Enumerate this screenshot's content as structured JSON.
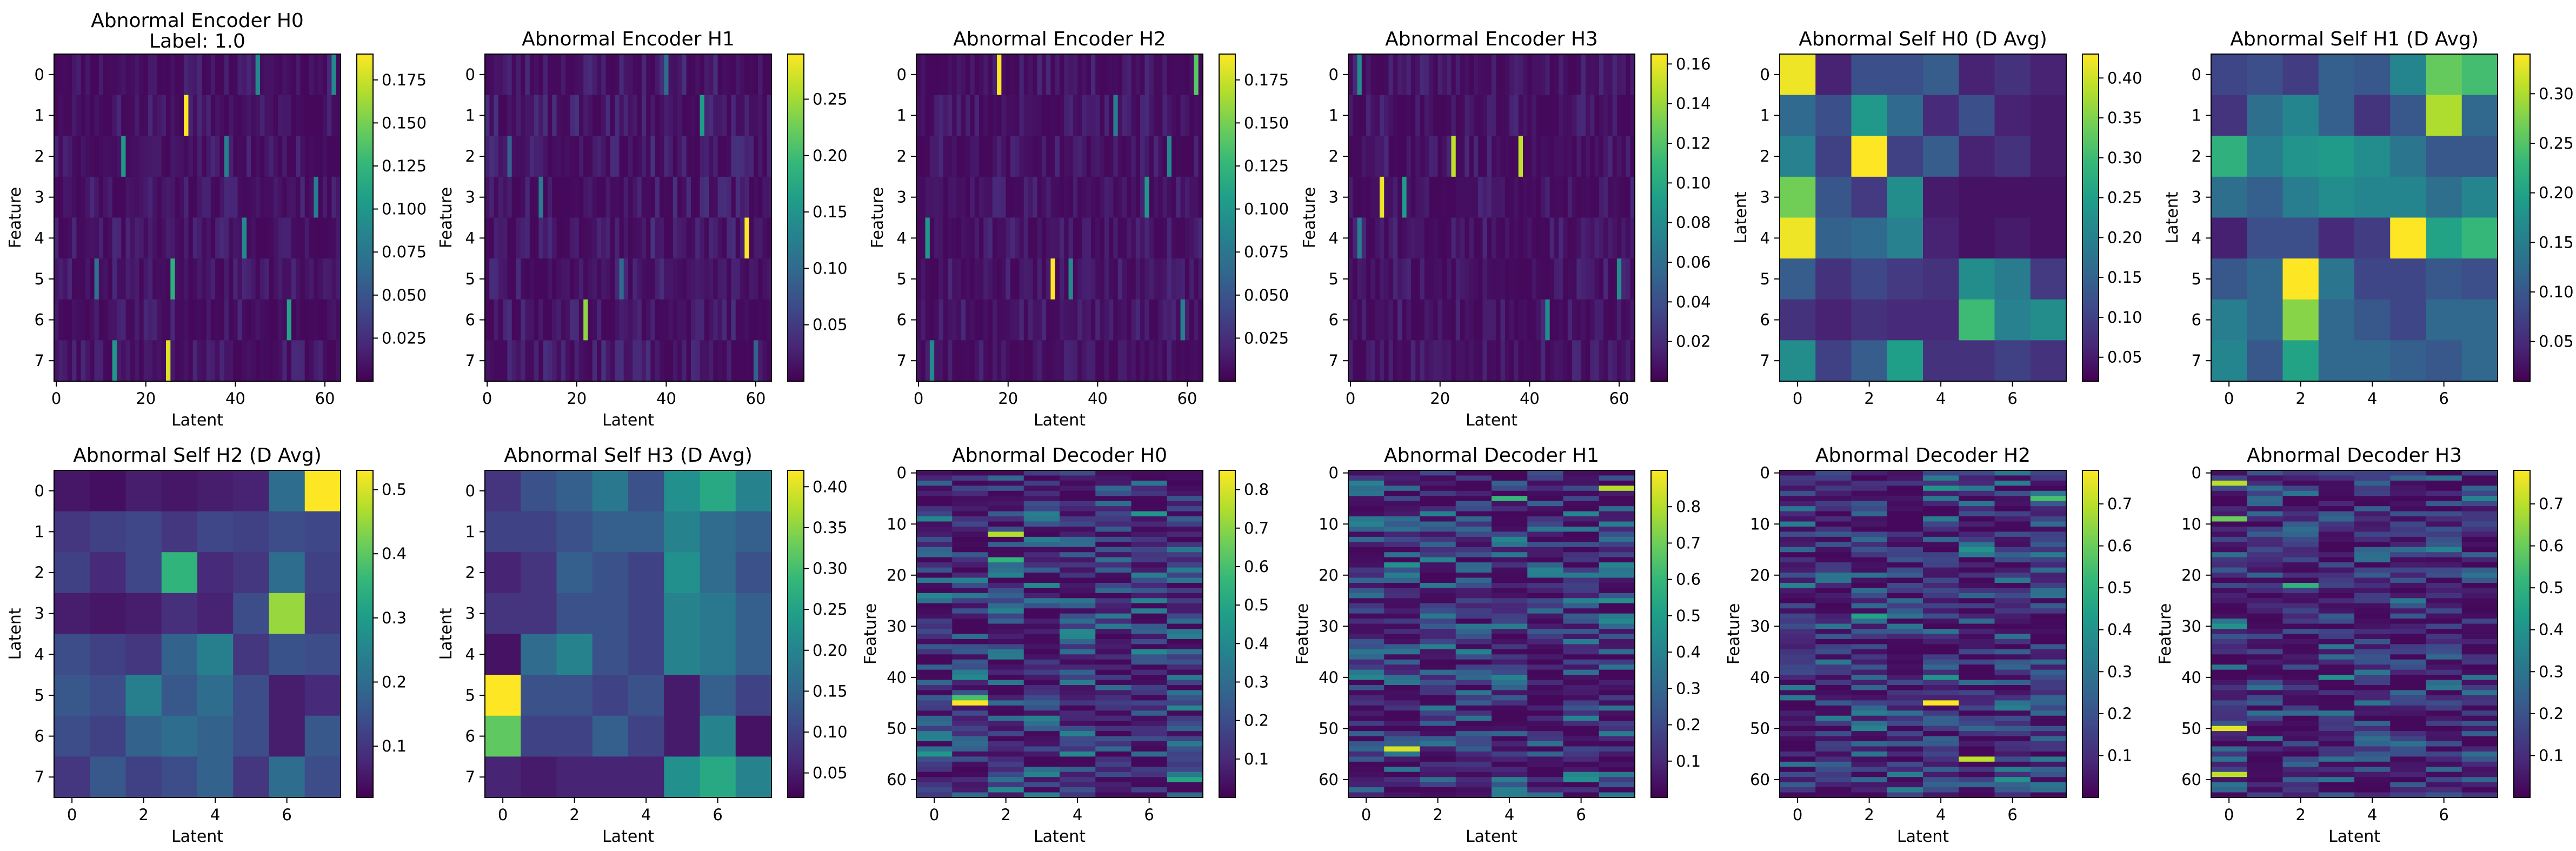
{
  "colormap": [
    "#440154",
    "#482878",
    "#3e4989",
    "#31688e",
    "#26828e",
    "#1f9e89",
    "#35b779",
    "#6ece58",
    "#b5de2b",
    "#fde725"
  ],
  "chart_data": [
    {
      "type": "heatmap",
      "title": "Abnormal Encoder H0",
      "subtitle": "Label: 1.0",
      "xlabel": "Latent",
      "ylabel": "Feature",
      "rows": 8,
      "cols": 64,
      "xticks": [
        0,
        20,
        40,
        60
      ],
      "yticks": [
        0,
        1,
        2,
        3,
        4,
        5,
        6,
        7
      ],
      "vmin": 0.0,
      "vmax": 0.19,
      "cbar_ticks": [
        "0.025",
        "0.050",
        "0.075",
        "0.100",
        "0.125",
        "0.150",
        "0.175"
      ],
      "cbar_values": [
        0.025,
        0.05,
        0.075,
        0.1,
        0.125,
        0.15,
        0.175
      ],
      "peaks": [
        [
          1,
          29,
          0.19
        ],
        [
          5,
          26,
          0.12
        ],
        [
          6,
          52,
          0.11
        ],
        [
          2,
          15,
          0.1
        ],
        [
          0,
          45,
          0.09
        ],
        [
          4,
          42,
          0.09
        ],
        [
          2,
          38,
          0.08
        ],
        [
          3,
          58,
          0.08
        ],
        [
          7,
          25,
          0.18
        ],
        [
          7,
          13,
          0.1
        ],
        [
          0,
          62,
          0.09
        ],
        [
          5,
          9,
          0.07
        ]
      ],
      "seed": 11,
      "base": 0.03
    },
    {
      "type": "heatmap",
      "title": "Abnormal Encoder H1",
      "xlabel": "Latent",
      "ylabel": "Feature",
      "rows": 8,
      "cols": 64,
      "xticks": [
        0,
        20,
        40,
        60
      ],
      "yticks": [
        0,
        1,
        2,
        3,
        4,
        5,
        6,
        7
      ],
      "vmin": 0.0,
      "vmax": 0.29,
      "cbar_ticks": [
        "0.05",
        "0.10",
        "0.15",
        "0.20",
        "0.25"
      ],
      "cbar_values": [
        0.05,
        0.1,
        0.15,
        0.2,
        0.25
      ],
      "peaks": [
        [
          4,
          58,
          0.29
        ],
        [
          6,
          22,
          0.24
        ],
        [
          1,
          48,
          0.16
        ],
        [
          3,
          12,
          0.12
        ],
        [
          5,
          30,
          0.1
        ],
        [
          0,
          40,
          0.1
        ],
        [
          2,
          5,
          0.09
        ],
        [
          7,
          60,
          0.09
        ]
      ],
      "seed": 23,
      "base": 0.04
    },
    {
      "type": "heatmap",
      "title": "Abnormal Encoder H2",
      "xlabel": "Latent",
      "ylabel": "Feature",
      "rows": 8,
      "cols": 64,
      "xticks": [
        0,
        20,
        40,
        60
      ],
      "yticks": [
        0,
        1,
        2,
        3,
        4,
        5,
        6,
        7
      ],
      "vmin": 0.0,
      "vmax": 0.19,
      "cbar_ticks": [
        "0.025",
        "0.050",
        "0.075",
        "0.100",
        "0.125",
        "0.150",
        "0.175"
      ],
      "cbar_values": [
        0.025,
        0.05,
        0.075,
        0.1,
        0.125,
        0.15,
        0.175
      ],
      "peaks": [
        [
          0,
          18,
          0.19
        ],
        [
          5,
          30,
          0.19
        ],
        [
          0,
          62,
          0.14
        ],
        [
          3,
          51,
          0.1
        ],
        [
          4,
          2,
          0.1
        ],
        [
          1,
          44,
          0.08
        ],
        [
          5,
          34,
          0.09
        ],
        [
          6,
          59,
          0.08
        ],
        [
          7,
          3,
          0.09
        ],
        [
          2,
          56,
          0.09
        ]
      ],
      "seed": 37,
      "base": 0.03
    },
    {
      "type": "heatmap",
      "title": "Abnormal Encoder H3",
      "xlabel": "Latent",
      "ylabel": "Feature",
      "rows": 8,
      "cols": 64,
      "xticks": [
        0,
        20,
        40,
        60
      ],
      "yticks": [
        0,
        1,
        2,
        3,
        4,
        5,
        6,
        7
      ],
      "vmin": 0.0,
      "vmax": 0.165,
      "cbar_ticks": [
        "0.02",
        "0.04",
        "0.06",
        "0.08",
        "0.10",
        "0.12",
        "0.14",
        "0.16"
      ],
      "cbar_values": [
        0.02,
        0.04,
        0.06,
        0.08,
        0.1,
        0.12,
        0.14,
        0.16
      ],
      "peaks": [
        [
          3,
          7,
          0.16
        ],
        [
          2,
          23,
          0.15
        ],
        [
          2,
          38,
          0.15
        ],
        [
          0,
          2,
          0.08
        ],
        [
          3,
          12,
          0.09
        ],
        [
          5,
          60,
          0.08
        ],
        [
          6,
          44,
          0.08
        ],
        [
          4,
          2,
          0.07
        ]
      ],
      "seed": 41,
      "base": 0.03
    },
    {
      "type": "heatmap",
      "title": "Abnormal Self H0 (D Avg)",
      "xlabel": "",
      "ylabel": "Latent",
      "rows": 8,
      "cols": 8,
      "xticks": [
        0,
        2,
        4,
        6
      ],
      "yticks": [
        0,
        1,
        2,
        3,
        4,
        5,
        6,
        7
      ],
      "vmin": 0.02,
      "vmax": 0.43,
      "cbar_ticks": [
        "0.05",
        "0.10",
        "0.15",
        "0.20",
        "0.25",
        "0.30",
        "0.35",
        "0.40"
      ],
      "cbar_values": [
        0.05,
        0.1,
        0.15,
        0.2,
        0.25,
        0.3,
        0.35,
        0.4
      ],
      "values": [
        [
          0.42,
          0.06,
          0.12,
          0.12,
          0.14,
          0.06,
          0.08,
          0.06
        ],
        [
          0.16,
          0.12,
          0.24,
          0.16,
          0.07,
          0.12,
          0.06,
          0.05
        ],
        [
          0.2,
          0.1,
          0.43,
          0.1,
          0.14,
          0.06,
          0.08,
          0.05
        ],
        [
          0.34,
          0.13,
          0.09,
          0.22,
          0.05,
          0.04,
          0.04,
          0.04
        ],
        [
          0.42,
          0.15,
          0.16,
          0.2,
          0.06,
          0.04,
          0.05,
          0.04
        ],
        [
          0.14,
          0.08,
          0.11,
          0.09,
          0.08,
          0.22,
          0.19,
          0.09
        ],
        [
          0.08,
          0.06,
          0.08,
          0.07,
          0.07,
          0.3,
          0.2,
          0.22
        ],
        [
          0.22,
          0.1,
          0.14,
          0.25,
          0.08,
          0.08,
          0.1,
          0.08
        ]
      ]
    },
    {
      "type": "heatmap",
      "title": "Abnormal Self H1 (D Avg)",
      "xlabel": "",
      "ylabel": "Latent",
      "rows": 8,
      "cols": 8,
      "xticks": [
        0,
        2,
        4,
        6
      ],
      "yticks": [
        0,
        1,
        2,
        3,
        4,
        5,
        6,
        7
      ],
      "vmin": 0.01,
      "vmax": 0.34,
      "cbar_ticks": [
        "0.05",
        "0.10",
        "0.15",
        "0.20",
        "0.25",
        "0.30"
      ],
      "cbar_values": [
        0.05,
        0.1,
        0.15,
        0.2,
        0.25,
        0.3
      ],
      "values": [
        [
          0.08,
          0.09,
          0.07,
          0.11,
          0.1,
          0.16,
          0.26,
          0.24
        ],
        [
          0.06,
          0.13,
          0.16,
          0.11,
          0.06,
          0.1,
          0.3,
          0.12
        ],
        [
          0.22,
          0.15,
          0.18,
          0.19,
          0.17,
          0.14,
          0.1,
          0.1
        ],
        [
          0.13,
          0.11,
          0.15,
          0.17,
          0.16,
          0.16,
          0.13,
          0.16
        ],
        [
          0.04,
          0.09,
          0.09,
          0.05,
          0.07,
          0.34,
          0.2,
          0.23
        ],
        [
          0.1,
          0.12,
          0.34,
          0.14,
          0.08,
          0.08,
          0.1,
          0.09
        ],
        [
          0.15,
          0.12,
          0.28,
          0.12,
          0.1,
          0.08,
          0.12,
          0.12
        ],
        [
          0.16,
          0.1,
          0.2,
          0.12,
          0.12,
          0.11,
          0.1,
          0.12
        ]
      ]
    },
    {
      "type": "heatmap",
      "title": "Abnormal Self H2 (D Avg)",
      "xlabel": "Latent",
      "ylabel": "Latent",
      "rows": 8,
      "cols": 8,
      "xticks": [
        0,
        2,
        4,
        6
      ],
      "yticks": [
        0,
        1,
        2,
        3,
        4,
        5,
        6,
        7
      ],
      "vmin": 0.02,
      "vmax": 0.53,
      "cbar_ticks": [
        "0.1",
        "0.2",
        "0.3",
        "0.4",
        "0.5"
      ],
      "cbar_values": [
        0.1,
        0.2,
        0.3,
        0.4,
        0.5
      ],
      "values": [
        [
          0.05,
          0.04,
          0.06,
          0.05,
          0.06,
          0.07,
          0.2,
          0.53
        ],
        [
          0.1,
          0.12,
          0.13,
          0.1,
          0.13,
          0.12,
          0.14,
          0.13
        ],
        [
          0.12,
          0.08,
          0.13,
          0.35,
          0.08,
          0.1,
          0.2,
          0.12
        ],
        [
          0.06,
          0.05,
          0.06,
          0.09,
          0.07,
          0.14,
          0.45,
          0.11
        ],
        [
          0.14,
          0.12,
          0.1,
          0.18,
          0.24,
          0.1,
          0.15,
          0.14
        ],
        [
          0.16,
          0.14,
          0.24,
          0.16,
          0.2,
          0.14,
          0.06,
          0.08
        ],
        [
          0.14,
          0.12,
          0.18,
          0.2,
          0.18,
          0.14,
          0.06,
          0.16
        ],
        [
          0.1,
          0.16,
          0.12,
          0.14,
          0.18,
          0.1,
          0.2,
          0.14
        ]
      ]
    },
    {
      "type": "heatmap",
      "title": "Abnormal Self H3 (D Avg)",
      "xlabel": "Latent",
      "ylabel": "Latent",
      "rows": 8,
      "cols": 8,
      "xticks": [
        0,
        2,
        4,
        6
      ],
      "yticks": [
        0,
        1,
        2,
        3,
        4,
        5,
        6,
        7
      ],
      "vmin": 0.02,
      "vmax": 0.42,
      "cbar_ticks": [
        "0.05",
        "0.10",
        "0.15",
        "0.20",
        "0.25",
        "0.30",
        "0.35",
        "0.40"
      ],
      "cbar_values": [
        0.05,
        0.1,
        0.15,
        0.2,
        0.25,
        0.3,
        0.35,
        0.4
      ],
      "values": [
        [
          0.08,
          0.12,
          0.14,
          0.18,
          0.12,
          0.22,
          0.26,
          0.2
        ],
        [
          0.1,
          0.1,
          0.12,
          0.14,
          0.14,
          0.2,
          0.16,
          0.14
        ],
        [
          0.06,
          0.08,
          0.14,
          0.12,
          0.1,
          0.22,
          0.16,
          0.12
        ],
        [
          0.08,
          0.08,
          0.12,
          0.12,
          0.1,
          0.2,
          0.18,
          0.14
        ],
        [
          0.04,
          0.16,
          0.2,
          0.12,
          0.1,
          0.2,
          0.18,
          0.14
        ],
        [
          0.42,
          0.12,
          0.12,
          0.1,
          0.12,
          0.05,
          0.14,
          0.1
        ],
        [
          0.32,
          0.1,
          0.1,
          0.14,
          0.1,
          0.05,
          0.2,
          0.04
        ],
        [
          0.06,
          0.05,
          0.06,
          0.06,
          0.06,
          0.22,
          0.26,
          0.2
        ]
      ]
    },
    {
      "type": "heatmap",
      "title": "Abnormal Decoder H0",
      "xlabel": "Latent",
      "ylabel": "Feature",
      "rows": 64,
      "cols": 8,
      "xticks": [
        0,
        2,
        4,
        6
      ],
      "yticks": [
        0,
        10,
        20,
        30,
        40,
        50,
        60
      ],
      "vmin": 0.0,
      "vmax": 0.85,
      "cbar_ticks": [
        "0.1",
        "0.2",
        "0.3",
        "0.4",
        "0.5",
        "0.6",
        "0.7",
        "0.8"
      ],
      "cbar_values": [
        0.1,
        0.2,
        0.3,
        0.4,
        0.5,
        0.6,
        0.7,
        0.8
      ],
      "peaks": [
        [
          45,
          1,
          0.85
        ],
        [
          44,
          1,
          0.6
        ],
        [
          12,
          2,
          0.75
        ],
        [
          60,
          7,
          0.5
        ],
        [
          40,
          1,
          0.4
        ],
        [
          8,
          6,
          0.45
        ],
        [
          22,
          3,
          0.4
        ],
        [
          17,
          2,
          0.55
        ],
        [
          30,
          5,
          0.35
        ],
        [
          55,
          0,
          0.45
        ],
        [
          35,
          6,
          0.4
        ],
        [
          62,
          2,
          0.4
        ]
      ],
      "seed": 53,
      "base": 0.14
    },
    {
      "type": "heatmap",
      "title": "Abnormal Decoder H1",
      "xlabel": "Latent",
      "ylabel": "Feature",
      "rows": 64,
      "cols": 8,
      "xticks": [
        0,
        2,
        4,
        6
      ],
      "yticks": [
        0,
        10,
        20,
        30,
        40,
        50,
        60
      ],
      "vmin": 0.0,
      "vmax": 0.9,
      "cbar_ticks": [
        "0.1",
        "0.2",
        "0.3",
        "0.4",
        "0.5",
        "0.6",
        "0.7",
        "0.8"
      ],
      "cbar_values": [
        0.1,
        0.2,
        0.3,
        0.4,
        0.5,
        0.6,
        0.7,
        0.8
      ],
      "peaks": [
        [
          54,
          1,
          0.85
        ],
        [
          3,
          7,
          0.8
        ],
        [
          5,
          4,
          0.6
        ],
        [
          18,
          1,
          0.45
        ],
        [
          25,
          7,
          0.45
        ],
        [
          40,
          4,
          0.4
        ],
        [
          60,
          6,
          0.45
        ],
        [
          10,
          0,
          0.4
        ],
        [
          30,
          3,
          0.35
        ],
        [
          48,
          6,
          0.4
        ],
        [
          35,
          1,
          0.35
        ]
      ],
      "seed": 67,
      "base": 0.14
    },
    {
      "type": "heatmap",
      "title": "Abnormal Decoder H2",
      "xlabel": "Latent",
      "ylabel": "Feature",
      "rows": 64,
      "cols": 8,
      "xticks": [
        0,
        2,
        4,
        6
      ],
      "yticks": [
        0,
        10,
        20,
        30,
        40,
        50,
        60
      ],
      "vmin": 0.0,
      "vmax": 0.78,
      "cbar_ticks": [
        "0.1",
        "0.2",
        "0.3",
        "0.4",
        "0.5",
        "0.6",
        "0.7"
      ],
      "cbar_values": [
        0.1,
        0.2,
        0.3,
        0.4,
        0.5,
        0.6,
        0.7
      ],
      "peaks": [
        [
          45,
          4,
          0.78
        ],
        [
          56,
          5,
          0.7
        ],
        [
          28,
          2,
          0.45
        ],
        [
          5,
          7,
          0.55
        ],
        [
          40,
          4,
          0.4
        ],
        [
          15,
          5,
          0.4
        ],
        [
          60,
          6,
          0.4
        ],
        [
          22,
          0,
          0.35
        ],
        [
          50,
          2,
          0.35
        ],
        [
          3,
          4,
          0.4
        ]
      ],
      "seed": 71,
      "base": 0.13
    },
    {
      "type": "heatmap",
      "title": "Abnormal Decoder H3",
      "xlabel": "Latent",
      "ylabel": "Feature",
      "rows": 64,
      "cols": 8,
      "xticks": [
        0,
        2,
        4,
        6
      ],
      "yticks": [
        0,
        10,
        20,
        30,
        40,
        50,
        60
      ],
      "vmin": 0.0,
      "vmax": 0.78,
      "cbar_ticks": [
        "0.1",
        "0.2",
        "0.3",
        "0.4",
        "0.5",
        "0.6",
        "0.7"
      ],
      "cbar_values": [
        0.1,
        0.2,
        0.3,
        0.4,
        0.5,
        0.6,
        0.7
      ],
      "peaks": [
        [
          2,
          0,
          0.7
        ],
        [
          9,
          0,
          0.6
        ],
        [
          50,
          0,
          0.75
        ],
        [
          59,
          0,
          0.7
        ],
        [
          22,
          2,
          0.5
        ],
        [
          40,
          3,
          0.4
        ],
        [
          15,
          6,
          0.35
        ],
        [
          30,
          0,
          0.4
        ],
        [
          5,
          7,
          0.35
        ],
        [
          45,
          4,
          0.3
        ]
      ],
      "seed": 83,
      "base": 0.12
    }
  ]
}
